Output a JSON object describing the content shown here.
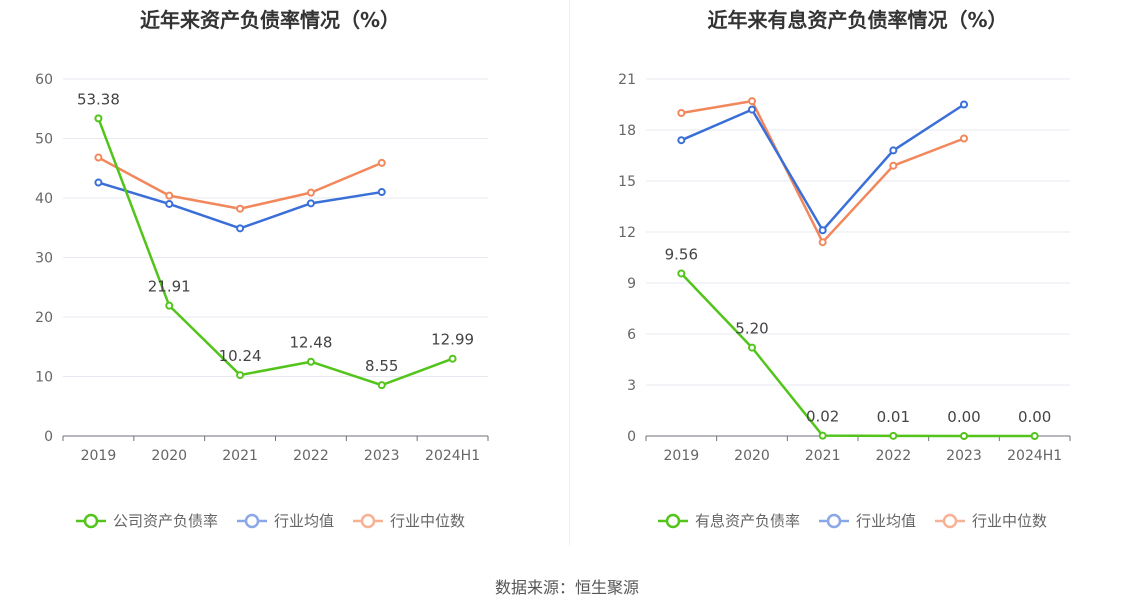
{
  "source_text": "数据来源：恒生聚源",
  "chart_data": [
    {
      "type": "line",
      "title": "近年来资产负债率情况（%）",
      "categories": [
        "2019",
        "2020",
        "2021",
        "2022",
        "2023",
        "2024H1"
      ],
      "ylim": [
        0,
        60
      ],
      "yticks": [
        0,
        10,
        20,
        30,
        40,
        50,
        60
      ],
      "grid": true,
      "legend_position": "bottom",
      "series": [
        {
          "name": "公司资产负债率",
          "color": "#52c41a",
          "values": [
            53.38,
            21.91,
            10.24,
            12.48,
            8.55,
            12.99
          ],
          "labels": [
            "53.38",
            "21.91",
            "10.24",
            "12.48",
            "8.55",
            "12.99"
          ]
        },
        {
          "name": "行业均值",
          "color": "#3a6fd8",
          "values": [
            42.6,
            39.0,
            34.9,
            39.1,
            41.0,
            null
          ]
        },
        {
          "name": "行业中位数",
          "color": "#f2875c",
          "values": [
            46.8,
            40.4,
            38.2,
            40.9,
            45.9,
            null
          ]
        }
      ]
    },
    {
      "type": "line",
      "title": "近年来有息资产负债率情况（%）",
      "categories": [
        "2019",
        "2020",
        "2021",
        "2022",
        "2023",
        "2024H1"
      ],
      "ylim": [
        0,
        21
      ],
      "yticks": [
        0,
        3,
        6,
        9,
        12,
        15,
        18,
        21
      ],
      "grid": true,
      "legend_position": "bottom",
      "series": [
        {
          "name": "有息资产负债率",
          "color": "#52c41a",
          "values": [
            9.56,
            5.2,
            0.02,
            0.01,
            0.0,
            0.0
          ],
          "labels": [
            "9.56",
            "5.20",
            "0.02",
            "0.01",
            "0.00",
            "0.00"
          ]
        },
        {
          "name": "行业均值",
          "color": "#3a6fd8",
          "values": [
            17.4,
            19.2,
            12.1,
            16.8,
            19.5,
            null
          ]
        },
        {
          "name": "行业中位数",
          "color": "#f2875c",
          "values": [
            19.0,
            19.7,
            11.4,
            15.9,
            17.5,
            null
          ]
        }
      ]
    }
  ]
}
